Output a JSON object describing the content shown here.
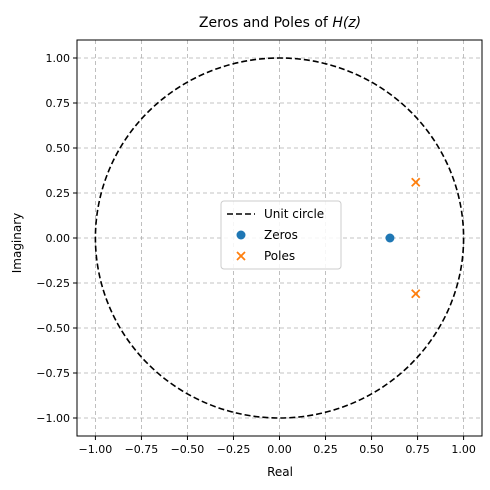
{
  "chart_data": {
    "type": "scatter",
    "title_prefix": "Zeros and Poles of ",
    "title_math": "H(z)",
    "xlabel": "Real",
    "ylabel": "Imaginary",
    "xlim": [
      -1.1,
      1.1
    ],
    "ylim": [
      -1.1,
      1.1
    ],
    "grid": true,
    "legend_position": "center",
    "x_ticks": [
      -1.0,
      -0.75,
      -0.5,
      -0.25,
      0.0,
      0.25,
      0.5,
      0.75,
      1.0
    ],
    "x_tick_labels": [
      "−1.00",
      "−0.75",
      "−0.50",
      "−0.25",
      "0.00",
      "0.25",
      "0.50",
      "0.75",
      "1.00"
    ],
    "y_ticks": [
      -1.0,
      -0.75,
      -0.5,
      -0.25,
      0.0,
      0.25,
      0.5,
      0.75,
      1.0
    ],
    "y_tick_labels": [
      "−1.00",
      "−0.75",
      "−0.50",
      "−0.25",
      "0.00",
      "0.25",
      "0.50",
      "0.75",
      "1.00"
    ],
    "unit_circle": {
      "name": "Unit circle",
      "radius": 1.0,
      "color": "#000000",
      "style": "dashed"
    },
    "series": [
      {
        "name": "Zeros",
        "marker": "circle",
        "color": "#1f77b4",
        "points": [
          [
            0.6,
            0.0
          ]
        ]
      },
      {
        "name": "Poles",
        "marker": "x",
        "color": "#ff7f0e",
        "points": [
          [
            0.74,
            0.31
          ],
          [
            0.74,
            -0.31
          ]
        ]
      }
    ]
  }
}
